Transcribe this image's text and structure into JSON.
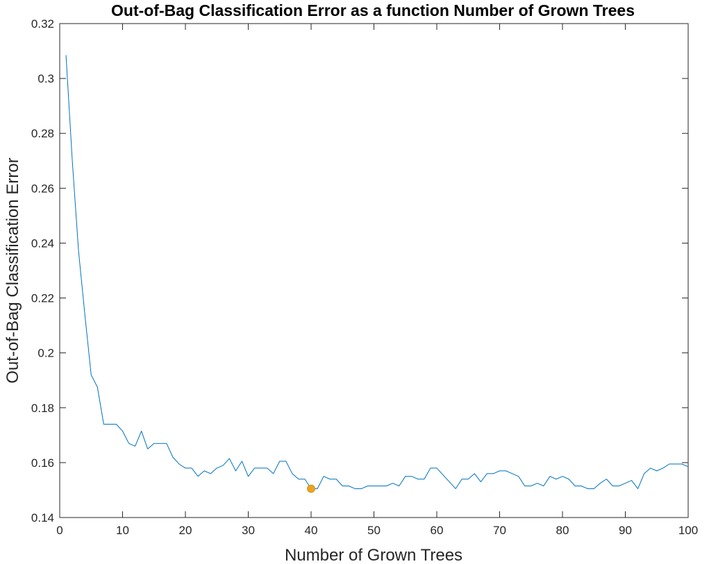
{
  "chart_data": {
    "type": "line",
    "title": "Out-of-Bag Classification Error as a function Number of Grown Trees",
    "xlabel": "Number of Grown Trees",
    "ylabel": "Out-of-Bag Classification Error",
    "xlim": [
      0,
      100
    ],
    "ylim": [
      0.14,
      0.32
    ],
    "xticks": [
      "0",
      "10",
      "20",
      "30",
      "40",
      "50",
      "60",
      "70",
      "80",
      "90",
      "100"
    ],
    "yticks": [
      "0.14",
      "0.16",
      "0.18",
      "0.2",
      "0.22",
      "0.24",
      "0.26",
      "0.28",
      "0.3",
      "0.32"
    ],
    "grid": false,
    "series": [
      {
        "color": "#0072BD",
        "x": [
          1,
          2,
          3,
          4,
          5,
          6,
          7,
          8,
          9,
          10,
          11,
          12,
          13,
          14,
          15,
          16,
          17,
          18,
          19,
          20,
          21,
          22,
          23,
          24,
          25,
          26,
          27,
          28,
          29,
          30,
          31,
          32,
          33,
          34,
          35,
          36,
          37,
          38,
          39,
          40,
          41,
          42,
          43,
          44,
          45,
          46,
          47,
          48,
          49,
          50,
          51,
          52,
          53,
          54,
          55,
          56,
          57,
          58,
          59,
          60,
          61,
          62,
          63,
          64,
          65,
          66,
          67,
          68,
          69,
          70,
          71,
          72,
          73,
          74,
          75,
          76,
          77,
          78,
          79,
          80,
          81,
          82,
          83,
          84,
          85,
          86,
          87,
          88,
          89,
          90,
          91,
          92,
          93,
          94,
          95,
          96,
          97,
          98,
          99,
          100
        ],
        "values": [
          0.3085,
          0.27,
          0.237,
          0.214,
          0.192,
          0.1875,
          0.174,
          0.174,
          0.174,
          0.1715,
          0.167,
          0.166,
          0.1715,
          0.165,
          0.167,
          0.167,
          0.167,
          0.162,
          0.1595,
          0.158,
          0.158,
          0.155,
          0.157,
          0.156,
          0.158,
          0.159,
          0.1615,
          0.157,
          0.1605,
          0.155,
          0.158,
          0.158,
          0.158,
          0.156,
          0.1605,
          0.1605,
          0.156,
          0.154,
          0.154,
          0.1505,
          0.1505,
          0.155,
          0.154,
          0.154,
          0.1515,
          0.1515,
          0.1505,
          0.1505,
          0.1515,
          0.1515,
          0.1515,
          0.1515,
          0.1525,
          0.1515,
          0.155,
          0.155,
          0.154,
          0.154,
          0.158,
          0.158,
          0.1555,
          0.153,
          0.1505,
          0.154,
          0.154,
          0.156,
          0.153,
          0.156,
          0.156,
          0.157,
          0.157,
          0.156,
          0.155,
          0.1515,
          0.1515,
          0.1525,
          0.1515,
          0.155,
          0.154,
          0.155,
          0.154,
          0.1515,
          0.1515,
          0.1505,
          0.1505,
          0.1525,
          0.154,
          0.1515,
          0.1515,
          0.1525,
          0.1535,
          0.1505,
          0.156,
          0.158,
          0.157,
          0.158,
          0.1595,
          0.1595,
          0.1595,
          0.1585
        ]
      }
    ],
    "marker": {
      "x": 40,
      "y": 0.1505,
      "color": "#EDA31F"
    }
  }
}
